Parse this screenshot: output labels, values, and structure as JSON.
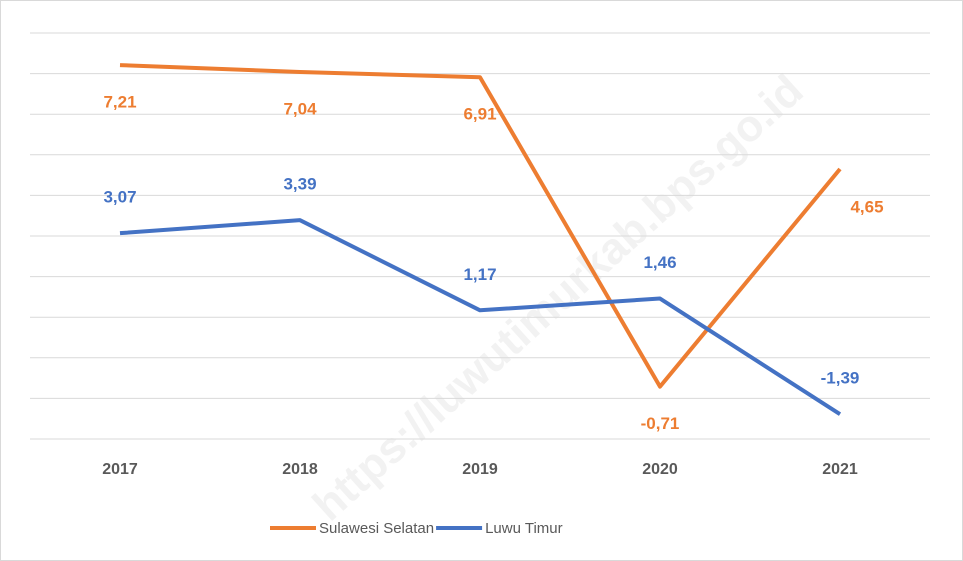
{
  "chart_data": {
    "type": "line",
    "categories": [
      "2017",
      "2018",
      "2019",
      "2020",
      "2021"
    ],
    "series": [
      {
        "name": "Sulawesi Selatan",
        "color": "#ed7d31",
        "values": [
          7.21,
          7.04,
          6.91,
          -0.71,
          4.65
        ],
        "value_labels": [
          "7,21",
          "7,04",
          "6,91",
          "-0,71",
          "4,65"
        ]
      },
      {
        "name": "Luwu Timur",
        "color": "#4472c4",
        "values": [
          3.07,
          3.39,
          1.17,
          1.46,
          -1.39
        ],
        "value_labels": [
          "3,07",
          "3,39",
          "1,17",
          "1,46",
          "-1,39"
        ]
      }
    ],
    "ylim": [
      -2,
      8
    ],
    "yticks": [
      -2,
      -1,
      0,
      1,
      2,
      3,
      4,
      5,
      6,
      7,
      8
    ],
    "grid": true,
    "legend": "bottom",
    "watermark": "https://luwutimurkab.bps.go.id"
  }
}
